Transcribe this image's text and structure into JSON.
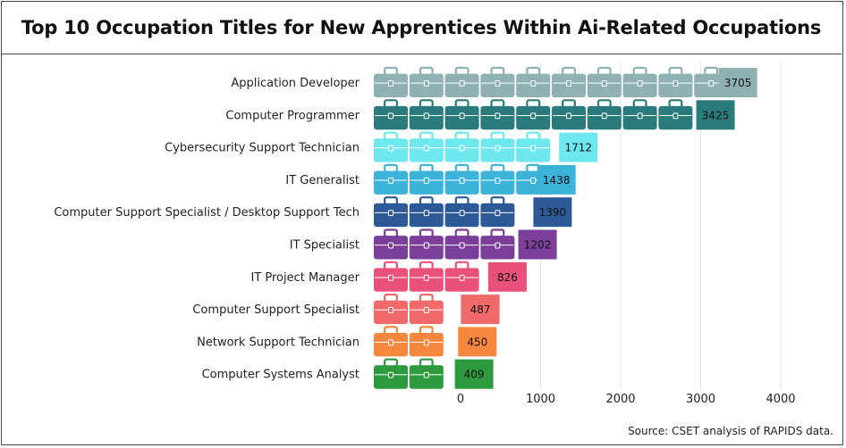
{
  "chart_data": {
    "type": "bar",
    "orientation": "horizontal",
    "title": "Top 10 Occupation Titles for New Apprentices Within Ai-Related Occupations",
    "source": "Source: CSET analysis of RAPIDS data.",
    "categories": [
      "Application Developer",
      "Computer Programmer",
      "Cybersecurity Support Technician",
      "IT Generalist",
      "Computer Support Specialist / Desktop Support Tech",
      "IT Specialist",
      "IT Project Manager",
      "Computer Support Specialist",
      "Network Support Technician",
      "Computer Systems Analyst"
    ],
    "values": [
      3705,
      3425,
      1712,
      1438,
      1390,
      1202,
      826,
      487,
      450,
      409
    ],
    "value_labels": [
      "3705",
      "3425",
      "1712",
      "1438",
      "1390",
      "1202",
      "826",
      "487",
      "450",
      "409"
    ],
    "icon_counts": [
      10,
      9,
      5,
      5,
      4,
      4,
      3,
      2,
      2,
      2
    ],
    "icon": "briefcase-icon",
    "colors": [
      "#8fb1b3",
      "#2a7b7c",
      "#6ee8ee",
      "#3cb3d8",
      "#2d5a96",
      "#7b3f9a",
      "#e9507a",
      "#f06a6a",
      "#f5873e",
      "#2e9a3e"
    ],
    "xticks": [
      "0",
      "1000",
      "2000",
      "3000",
      "4000"
    ],
    "xlim": [
      0,
      4000
    ],
    "grid": true,
    "legend": false
  }
}
